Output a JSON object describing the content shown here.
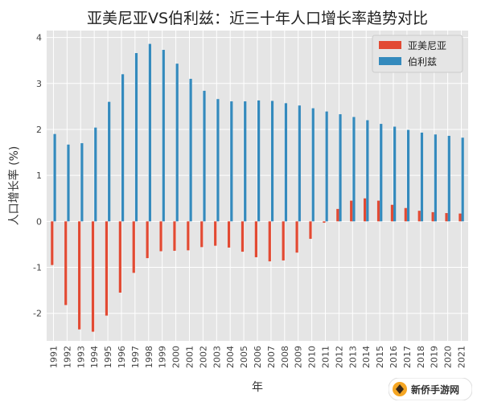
{
  "chart_data": {
    "type": "bar",
    "title": "亚美尼亚VS伯利兹：近三十年人口增长率趋势对比",
    "xlabel": "年",
    "ylabel": "人口增长率 (%)",
    "ylim": [
      -2.6,
      4.15
    ],
    "yticks": [
      -2,
      -1,
      0,
      1,
      2,
      3,
      4
    ],
    "grid": true,
    "legend_position": "top-right",
    "categories": [
      "1991",
      "1992",
      "1993",
      "1994",
      "1995",
      "1996",
      "1997",
      "1998",
      "1999",
      "2000",
      "2001",
      "2002",
      "2003",
      "2004",
      "2005",
      "2006",
      "2007",
      "2008",
      "2009",
      "2010",
      "2011",
      "2012",
      "2013",
      "2014",
      "2015",
      "2016",
      "2017",
      "2018",
      "2019",
      "2020",
      "2021"
    ],
    "series": [
      {
        "name": "亚美尼亚",
        "color": "#e24a33",
        "values": [
          -0.95,
          -1.82,
          -2.35,
          -2.4,
          -2.05,
          -1.55,
          -1.12,
          -0.8,
          -0.65,
          -0.64,
          -0.63,
          -0.56,
          -0.53,
          -0.57,
          -0.66,
          -0.78,
          -0.87,
          -0.85,
          -0.68,
          -0.38,
          -0.03,
          0.27,
          0.45,
          0.5,
          0.45,
          0.36,
          0.29,
          0.23,
          0.2,
          0.18,
          0.17
        ]
      },
      {
        "name": "伯利兹",
        "color": "#348abd",
        "values": [
          1.9,
          1.67,
          1.7,
          2.04,
          2.6,
          3.2,
          3.66,
          3.86,
          3.73,
          3.43,
          3.1,
          2.84,
          2.66,
          2.61,
          2.61,
          2.63,
          2.62,
          2.57,
          2.52,
          2.46,
          2.39,
          2.33,
          2.27,
          2.2,
          2.12,
          2.06,
          1.99,
          1.93,
          1.89,
          1.86,
          1.82
        ]
      }
    ]
  },
  "watermark": {
    "text": "新侨手游网"
  }
}
